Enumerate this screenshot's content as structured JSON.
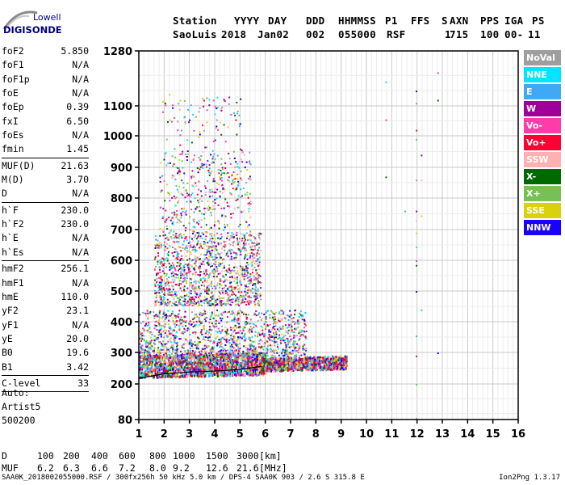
{
  "logo": {
    "top": "Lowell",
    "bottom": "DIGISONDE"
  },
  "header": {
    "keys": [
      "Station",
      "YYYY",
      "DAY",
      "DDD",
      "HHMMSS",
      "P1",
      "FFS",
      "S",
      "AXN",
      "PPS",
      "IGA",
      "PS"
    ],
    "values": [
      "SaoLuis",
      "2018",
      "Jan02",
      "002",
      "055000",
      "RSF",
      "",
      "1",
      "715",
      "100",
      "00-",
      "11"
    ]
  },
  "params": {
    "group1": [
      {
        "name": "foF2",
        "value": "5.850"
      },
      {
        "name": "foF1",
        "value": "N/A"
      },
      {
        "name": "foF1p",
        "value": "N/A"
      },
      {
        "name": "foE",
        "value": "N/A"
      },
      {
        "name": "foEp",
        "value": "0.39"
      },
      {
        "name": "fxI",
        "value": "6.50"
      },
      {
        "name": "foEs",
        "value": "N/A"
      },
      {
        "name": "fmin",
        "value": "1.45"
      }
    ],
    "group2": [
      {
        "name": "MUF(D)",
        "value": "21.63"
      },
      {
        "name": "M(D)",
        "value": "3.70"
      },
      {
        "name": "D",
        "value": "N/A"
      }
    ],
    "group3": [
      {
        "name": "h`F",
        "value": "230.0"
      },
      {
        "name": "h`F2",
        "value": "230.0"
      },
      {
        "name": "h`E",
        "value": "N/A"
      },
      {
        "name": "h`Es",
        "value": "N/A"
      }
    ],
    "group4": [
      {
        "name": "hmF2",
        "value": "256.1"
      },
      {
        "name": "hmF1",
        "value": "N/A"
      },
      {
        "name": "hmE",
        "value": "110.0"
      },
      {
        "name": "yF2",
        "value": "23.1"
      },
      {
        "name": "yF1",
        "value": "N/A"
      },
      {
        "name": "yE",
        "value": "20.0"
      },
      {
        "name": "B0",
        "value": "19.6"
      },
      {
        "name": "B1",
        "value": "3.42"
      }
    ],
    "clevel": {
      "name": "C-level",
      "value": "33"
    }
  },
  "auto": {
    "line1": "Auto:",
    "line2": "Artist5",
    "line3": "500200"
  },
  "legend": [
    {
      "label": "NoVal",
      "color": "#9e9e9e"
    },
    {
      "label": "NNE",
      "color": "#00e5ff"
    },
    {
      "label": "E",
      "color": "#3fa9f5"
    },
    {
      "label": "W",
      "color": "#a0009a"
    },
    {
      "label": "Vo-",
      "color": "#ff3caa"
    },
    {
      "label": "Vo+",
      "color": "#ff0033"
    },
    {
      "label": "SSW",
      "color": "#ffb0b0"
    },
    {
      "label": "X-",
      "color": "#006a00"
    },
    {
      "label": "X+",
      "color": "#77c055"
    },
    {
      "label": "SSE",
      "color": "#d9d20a"
    },
    {
      "label": "NNW",
      "color": "#1a00ff"
    }
  ],
  "dmuf": {
    "d_label": "D",
    "d_values": [
      "100",
      "200",
      "400",
      "600",
      "800",
      "1000",
      "1500",
      "3000"
    ],
    "d_unit": "[km]",
    "muf_label": "MUF",
    "muf_values": [
      "6.2",
      "6.3",
      "6.6",
      "7.2",
      "8.0",
      "9.2",
      "12.6",
      "21.6"
    ],
    "muf_unit": "[MHz]"
  },
  "footer": "SAA0K_2018002055000.RSF / 300fx256h 50 kHz 5.0 km / DPS-4 SAA0K 903 / 2.6 S 315.8 E",
  "version": "Ion2Png 1.3.17",
  "chart_data": {
    "type": "scatter",
    "title": "",
    "xlabel": "",
    "ylabel": "",
    "xlim": [
      1,
      16
    ],
    "ylim": [
      80,
      1280
    ],
    "x_ticks": [
      1,
      2,
      3,
      4,
      5,
      6,
      7,
      8,
      9,
      10,
      11,
      12,
      13,
      14,
      15,
      16
    ],
    "y_ticks": [
      80,
      200,
      300,
      400,
      500,
      600,
      700,
      800,
      900,
      1000,
      1100,
      1280
    ],
    "y_scale": "nonlinear (approximately reciprocal)",
    "grid": true,
    "clusters": [
      {
        "name": "F-trace dense",
        "x_range": [
          1.0,
          9.2
        ],
        "y_range": [
          235,
          330
        ],
        "density": "high"
      },
      {
        "name": "F spread echoes",
        "x_range": [
          1.0,
          7.6
        ],
        "y_range": [
          290,
          440
        ],
        "density": "medium"
      },
      {
        "name": "2F multiple",
        "x_range": [
          1.6,
          5.8
        ],
        "y_range": [
          455,
          690
        ],
        "density": "medium"
      },
      {
        "name": "3F multiple",
        "x_range": [
          1.8,
          5.4
        ],
        "y_range": [
          690,
          960
        ],
        "density": "low"
      },
      {
        "name": "high echoes",
        "x_range": [
          1.9,
          5.0
        ],
        "y_range": [
          960,
          1140
        ],
        "density": "sparse"
      }
    ],
    "isolated_points": [
      {
        "x": 10.75,
        "y": 1180
      },
      {
        "x": 10.75,
        "y": 1055
      },
      {
        "x": 10.75,
        "y": 870
      },
      {
        "x": 11.95,
        "y": 1150
      },
      {
        "x": 11.95,
        "y": 1110
      },
      {
        "x": 11.95,
        "y": 1020
      },
      {
        "x": 11.95,
        "y": 990
      },
      {
        "x": 11.95,
        "y": 860
      },
      {
        "x": 11.95,
        "y": 760
      },
      {
        "x": 11.95,
        "y": 730
      },
      {
        "x": 11.95,
        "y": 690
      },
      {
        "x": 11.95,
        "y": 645
      },
      {
        "x": 11.95,
        "y": 600
      },
      {
        "x": 11.95,
        "y": 585
      },
      {
        "x": 11.95,
        "y": 500
      },
      {
        "x": 11.95,
        "y": 355
      },
      {
        "x": 11.95,
        "y": 290
      },
      {
        "x": 11.95,
        "y": 200
      },
      {
        "x": 11.95,
        "y": 85
      },
      {
        "x": 12.15,
        "y": 940
      },
      {
        "x": 12.15,
        "y": 860
      },
      {
        "x": 12.15,
        "y": 745
      },
      {
        "x": 12.15,
        "y": 440
      },
      {
        "x": 12.8,
        "y": 1210
      },
      {
        "x": 12.8,
        "y": 1120
      },
      {
        "x": 12.8,
        "y": 300
      },
      {
        "x": 11.5,
        "y": 760
      }
    ],
    "model_profile": {
      "x": [
        1.0,
        2.0,
        3.0,
        4.0,
        5.0,
        5.85
      ],
      "y": [
        218,
        232,
        238,
        241,
        246,
        256
      ]
    }
  }
}
